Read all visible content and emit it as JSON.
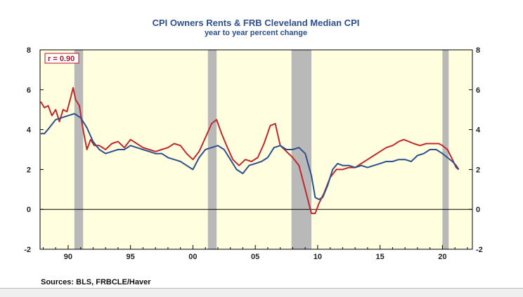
{
  "chart_data": {
    "type": "line",
    "title": "CPI Owners Rents & FRB Cleveland Median CPI",
    "subtitle": "year to year percent change",
    "source": "Sources:  BLS, FRBCLE/Haver",
    "annotation": "r = 0.90",
    "xlim": [
      1987.75,
      2022.4
    ],
    "ylim": [
      -2,
      8
    ],
    "x_ticks": [
      {
        "value": 1990,
        "label": "90"
      },
      {
        "value": 1995,
        "label": "95"
      },
      {
        "value": 2000,
        "label": "00"
      },
      {
        "value": 2005,
        "label": "05"
      },
      {
        "value": 2010,
        "label": "10"
      },
      {
        "value": 2015,
        "label": "15"
      },
      {
        "value": 2020,
        "label": "20"
      }
    ],
    "y_ticks": [
      -2,
      0,
      2,
      4,
      6,
      8
    ],
    "y_tick_labels": [
      "-2",
      "0",
      "2",
      "4",
      "6",
      "8"
    ],
    "recessions": [
      [
        1990.5,
        1991.2
      ],
      [
        2001.2,
        2001.9
      ],
      [
        2007.9,
        2009.5
      ],
      [
        2020.0,
        2020.5
      ]
    ],
    "colors": {
      "background": "#ffffe0",
      "recession": "#b9b9b9",
      "owners_rent": "#c1272d",
      "median_cpi": "#2e4f8e",
      "title": "#2e4f8e"
    },
    "series": [
      {
        "key": "owners_rent",
        "x": [
          1987.8,
          1988.1,
          1988.4,
          1988.7,
          1989.0,
          1989.3,
          1989.6,
          1989.9,
          1990.2,
          1990.4,
          1990.6,
          1990.9,
          1991.2,
          1991.5,
          1991.8,
          1992.1,
          1992.5,
          1993.0,
          1993.5,
          1994.0,
          1994.5,
          1995.0,
          1995.5,
          1996.0,
          1996.5,
          1997.0,
          1997.5,
          1998.0,
          1998.5,
          1999.0,
          1999.5,
          2000.0,
          2000.5,
          2001.0,
          2001.5,
          2001.9,
          2002.3,
          2002.7,
          2003.2,
          2003.7,
          2004.2,
          2004.7,
          2005.2,
          2005.7,
          2006.2,
          2006.6,
          2007.0,
          2007.5,
          2008.0,
          2008.5,
          2009.0,
          2009.5,
          2009.8,
          2010.1,
          2010.5,
          2011.0,
          2011.5,
          2012.0,
          2012.5,
          2013.0,
          2013.5,
          2014.0,
          2014.5,
          2015.0,
          2015.5,
          2016.0,
          2016.5,
          2016.9,
          2017.3,
          2017.7,
          2018.2,
          2018.7,
          2019.2,
          2019.7,
          2020.0,
          2020.4,
          2020.8,
          2021.1,
          2021.3
        ],
        "y": [
          5.4,
          5.1,
          5.2,
          4.7,
          5.0,
          4.4,
          5.0,
          4.9,
          5.6,
          6.1,
          5.5,
          5.2,
          4.0,
          3.0,
          3.5,
          3.2,
          3.2,
          3.0,
          3.3,
          3.4,
          3.1,
          3.5,
          3.3,
          3.1,
          3.0,
          2.9,
          3.0,
          3.1,
          3.3,
          3.2,
          2.8,
          2.5,
          2.9,
          3.6,
          4.3,
          4.5,
          3.8,
          3.2,
          2.5,
          2.2,
          2.5,
          2.4,
          2.6,
          3.3,
          4.2,
          4.3,
          3.2,
          2.9,
          2.6,
          2.2,
          1.0,
          -0.2,
          -0.2,
          0.3,
          0.8,
          1.6,
          2.0,
          2.0,
          2.1,
          2.1,
          2.3,
          2.5,
          2.7,
          2.9,
          3.1,
          3.2,
          3.4,
          3.5,
          3.4,
          3.3,
          3.2,
          3.3,
          3.3,
          3.3,
          3.2,
          3.0,
          2.5,
          2.1,
          2.0
        ]
      },
      {
        "key": "median_cpi",
        "x": [
          1987.8,
          1988.1,
          1988.5,
          1989.0,
          1989.5,
          1990.0,
          1990.5,
          1991.0,
          1991.5,
          1992.0,
          1992.5,
          1993.0,
          1993.5,
          1994.0,
          1994.5,
          1995.0,
          1995.5,
          1996.0,
          1996.5,
          1997.0,
          1997.5,
          1998.0,
          1998.5,
          1999.0,
          1999.5,
          2000.0,
          2000.5,
          2001.0,
          2001.5,
          2002.0,
          2002.5,
          2003.0,
          2003.5,
          2004.0,
          2004.5,
          2005.0,
          2005.5,
          2006.0,
          2006.5,
          2007.0,
          2007.5,
          2008.0,
          2008.5,
          2009.0,
          2009.5,
          2009.8,
          2010.1,
          2010.4,
          2010.8,
          2011.2,
          2011.6,
          2012.0,
          2012.5,
          2013.0,
          2013.5,
          2014.0,
          2014.5,
          2015.0,
          2015.5,
          2016.0,
          2016.5,
          2017.0,
          2017.5,
          2018.0,
          2018.5,
          2019.0,
          2019.5,
          2020.0,
          2020.4,
          2020.8,
          2021.1,
          2021.3
        ],
        "y": [
          3.8,
          3.8,
          4.1,
          4.5,
          4.6,
          4.7,
          4.8,
          4.6,
          4.1,
          3.4,
          3.0,
          2.8,
          2.9,
          3.0,
          3.0,
          3.2,
          3.1,
          3.0,
          2.9,
          2.8,
          2.8,
          2.6,
          2.5,
          2.4,
          2.2,
          2.0,
          2.6,
          3.0,
          3.1,
          3.2,
          3.0,
          2.5,
          2.0,
          1.8,
          2.2,
          2.3,
          2.4,
          2.6,
          3.1,
          3.2,
          3.0,
          3.0,
          3.1,
          2.8,
          1.7,
          0.6,
          0.5,
          0.6,
          1.2,
          2.0,
          2.3,
          2.2,
          2.2,
          2.1,
          2.2,
          2.1,
          2.2,
          2.3,
          2.4,
          2.4,
          2.5,
          2.5,
          2.4,
          2.7,
          2.8,
          3.0,
          3.0,
          2.8,
          2.6,
          2.4,
          2.2,
          2.0
        ]
      }
    ]
  }
}
